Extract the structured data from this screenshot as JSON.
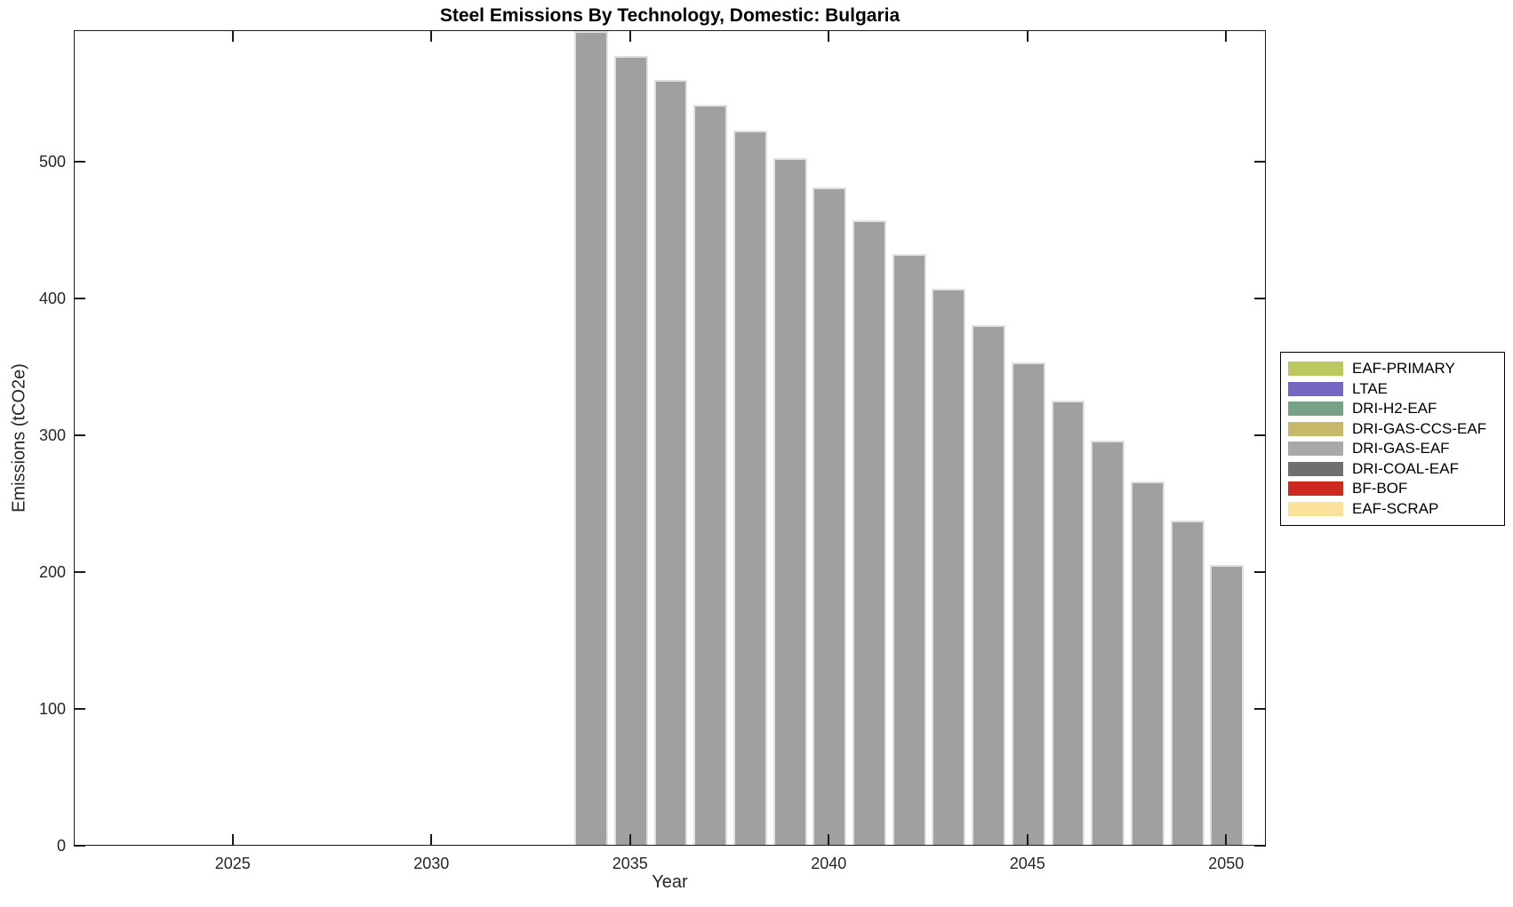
{
  "figure": {
    "title": "Steel Emissions By Technology, Domestic: Bulgaria",
    "xlabel": "Year",
    "ylabel": "Emissions (tCO2e)"
  },
  "chart_data": {
    "type": "bar",
    "title": "Steel Emissions By Technology, Domestic: Bulgaria",
    "xlabel": "Year",
    "ylabel": "Emissions (tCO2e)",
    "xlim": [
      2021,
      2051
    ],
    "ylim": [
      0,
      596
    ],
    "xticks": [
      2025,
      2030,
      2035,
      2040,
      2045,
      2050
    ],
    "yticks": [
      0,
      100,
      200,
      300,
      400,
      500
    ],
    "grid": false,
    "bar_width_fraction": 0.85,
    "bar_color": "#a0a0a0",
    "bar_edge_color": "#e0e0e0",
    "series": [
      {
        "name": "DRI-GAS-EAF",
        "x": [
          2034,
          2035,
          2036,
          2037,
          2038,
          2039,
          2040,
          2041,
          2042,
          2043,
          2044,
          2045,
          2046,
          2047,
          2048,
          2049,
          2050
        ],
        "values": [
          596,
          578,
          560,
          542,
          523,
          503,
          482,
          458,
          433,
          408,
          381,
          354,
          326,
          297,
          267,
          238,
          206
        ]
      }
    ],
    "legend": {
      "position": "right-outside",
      "entries": [
        {
          "label": "EAF-PRIMARY",
          "color": "#bdc75f"
        },
        {
          "label": "LTAE",
          "color": "#7467c1"
        },
        {
          "label": "DRI-H2-EAF",
          "color": "#77a287"
        },
        {
          "label": "DRI-GAS-CCS-EAF",
          "color": "#c8b96a"
        },
        {
          "label": "DRI-GAS-EAF",
          "color": "#a9a9a9"
        },
        {
          "label": "DRI-COAL-EAF",
          "color": "#6f6f6f"
        },
        {
          "label": "BF-BOF",
          "color": "#cd2a1f"
        },
        {
          "label": "EAF-SCRAP",
          "color": "#fbe29b"
        }
      ]
    }
  }
}
